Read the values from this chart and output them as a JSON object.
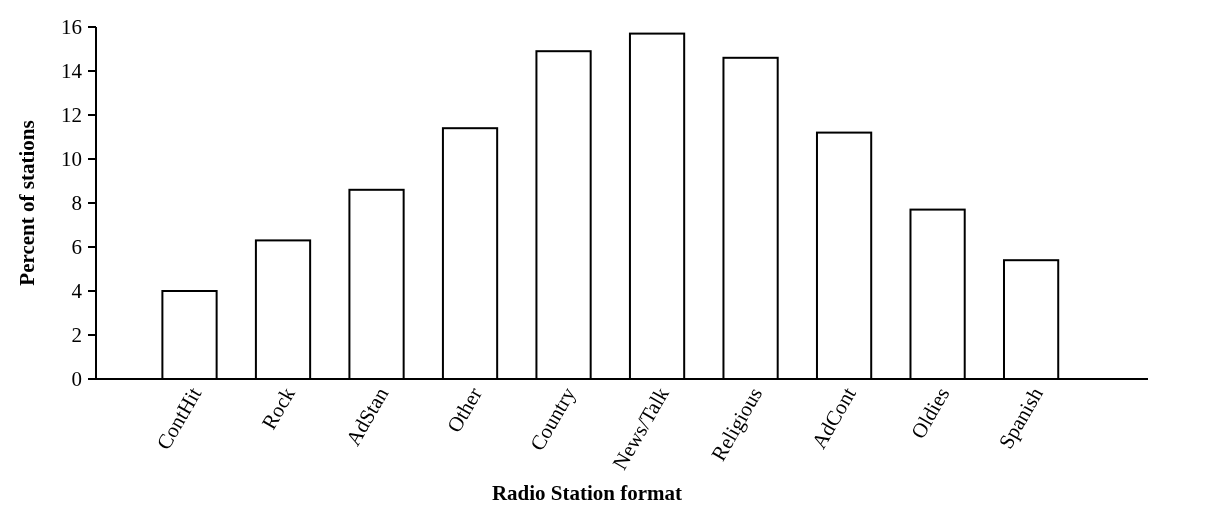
{
  "chart_data": {
    "type": "bar",
    "xlabel": "Radio Station format",
    "ylabel": "Percent of stations",
    "categories": [
      "ContHit",
      "Rock",
      "AdStan",
      "Other",
      "Country",
      "News/Talk",
      "Religious",
      "AdCont",
      "Oldies",
      "Spanish"
    ],
    "values": [
      4.0,
      6.3,
      8.6,
      11.4,
      14.9,
      15.7,
      14.6,
      11.2,
      7.7,
      5.4
    ],
    "color": "#ffffff",
    "ylim": [
      0,
      16
    ],
    "yticks": [
      0,
      2,
      4,
      6,
      8,
      10,
      12,
      14,
      16
    ]
  }
}
